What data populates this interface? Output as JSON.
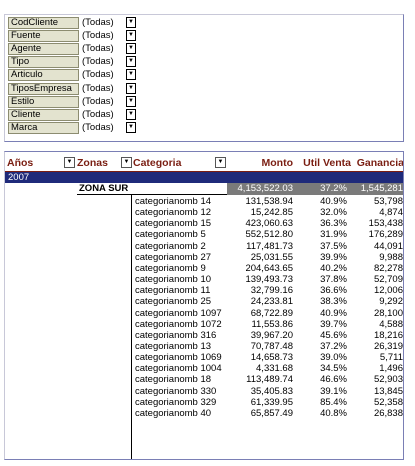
{
  "filters": [
    {
      "label": "CodCliente",
      "value": "(Todas)"
    },
    {
      "label": "Fuente",
      "value": "(Todas)"
    },
    {
      "label": "Agente",
      "value": "(Todas)"
    },
    {
      "label": "Tipo",
      "value": "(Todas)"
    },
    {
      "label": "Articulo",
      "value": "(Todas)"
    },
    {
      "label": "TiposEmpresa",
      "value": "(Todas)"
    },
    {
      "label": "Estilo",
      "value": "(Todas)"
    },
    {
      "label": "Cliente",
      "value": "(Todas)"
    },
    {
      "label": "Marca",
      "value": "(Todas)"
    }
  ],
  "pivot": {
    "headers": {
      "anios": "Años",
      "zonas": "Zonas",
      "categoria": "Categoria",
      "monto": "Monto",
      "util": "Util Venta",
      "ganancia": "Ganancia"
    },
    "year": "2007",
    "zone": "ZONA SUR",
    "zone_total": {
      "monto": "4,153,522.03",
      "util": "37.2%",
      "ganancia": "1,545,281"
    },
    "rows": [
      {
        "cat": "categorianomb 14",
        "monto": "131,538.94",
        "util": "40.9%",
        "gan": "53,798"
      },
      {
        "cat": "categorianomb 12",
        "monto": "15,242.85",
        "util": "32.0%",
        "gan": "4,874"
      },
      {
        "cat": "categorianomb 15",
        "monto": "423,060.63",
        "util": "36.3%",
        "gan": "153,438"
      },
      {
        "cat": "categorianomb 5",
        "monto": "552,512.80",
        "util": "31.9%",
        "gan": "176,289"
      },
      {
        "cat": "categorianomb 2",
        "monto": "117,481.73",
        "util": "37.5%",
        "gan": "44,091"
      },
      {
        "cat": "categorianomb 27",
        "monto": "25,031.55",
        "util": "39.9%",
        "gan": "9,988"
      },
      {
        "cat": "categorianomb 9",
        "monto": "204,643.65",
        "util": "40.2%",
        "gan": "82,278"
      },
      {
        "cat": "categorianomb 10",
        "monto": "139,493.73",
        "util": "37.8%",
        "gan": "52,709"
      },
      {
        "cat": "categorianomb 11",
        "monto": "32,799.16",
        "util": "36.6%",
        "gan": "12,006"
      },
      {
        "cat": "categorianomb 25",
        "monto": "24,233.81",
        "util": "38.3%",
        "gan": "9,292"
      },
      {
        "cat": "categorianomb 1097",
        "monto": "68,722.89",
        "util": "40.9%",
        "gan": "28,100"
      },
      {
        "cat": "categorianomb 1072",
        "monto": "11,553.86",
        "util": "39.7%",
        "gan": "4,588"
      },
      {
        "cat": "categorianomb 316",
        "monto": "39,967.20",
        "util": "45.6%",
        "gan": "18,216"
      },
      {
        "cat": "categorianomb 13",
        "monto": "70,787.48",
        "util": "37.2%",
        "gan": "26,319"
      },
      {
        "cat": "categorianomb 1069",
        "monto": "14,658.73",
        "util": "39.0%",
        "gan": "5,711"
      },
      {
        "cat": "categorianomb 1004",
        "monto": "4,331.68",
        "util": "34.5%",
        "gan": "1,496"
      },
      {
        "cat": "categorianomb 18",
        "monto": "113,489.74",
        "util": "46.6%",
        "gan": "52,903"
      },
      {
        "cat": "categorianomb 330",
        "monto": "35,405.83",
        "util": "39.1%",
        "gan": "13,845"
      },
      {
        "cat": "categorianomb 329",
        "monto": "61,339.95",
        "util": "85.4%",
        "gan": "52,358"
      },
      {
        "cat": "categorianomb 40",
        "monto": "65,857.49",
        "util": "40.8%",
        "gan": "26,838"
      }
    ]
  }
}
